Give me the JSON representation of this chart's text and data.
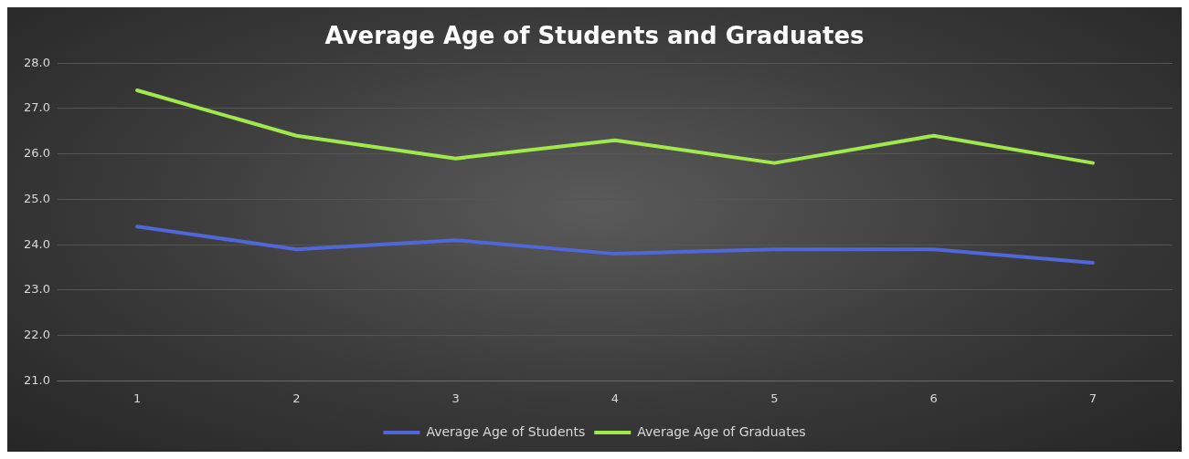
{
  "chart_data": {
    "type": "line",
    "title": "Average Age of Students and Graduates",
    "categories": [
      "1",
      "2",
      "3",
      "4",
      "5",
      "6",
      "7"
    ],
    "series": [
      {
        "name": "Average Age of Students",
        "color": "#4f67d8",
        "values": [
          24.4,
          23.9,
          24.1,
          23.8,
          23.9,
          23.9,
          23.6
        ]
      },
      {
        "name": "Average Age of Graduates",
        "color": "#a0e84c",
        "values": [
          27.4,
          26.4,
          25.9,
          26.3,
          25.8,
          26.4,
          25.8
        ]
      }
    ],
    "ylim": [
      21,
      28
    ],
    "yticks": [
      {
        "value": 21,
        "label": "21.0"
      },
      {
        "value": 22,
        "label": "22.0"
      },
      {
        "value": 23,
        "label": "23.0"
      },
      {
        "value": 24,
        "label": "24.0"
      },
      {
        "value": 25,
        "label": "25.0"
      },
      {
        "value": 26,
        "label": "26.0"
      },
      {
        "value": 27,
        "label": "27.0"
      },
      {
        "value": 28,
        "label": "28.0"
      }
    ],
    "grid": "y",
    "legend": "bottom",
    "marker": "none",
    "line_style": "solid"
  }
}
